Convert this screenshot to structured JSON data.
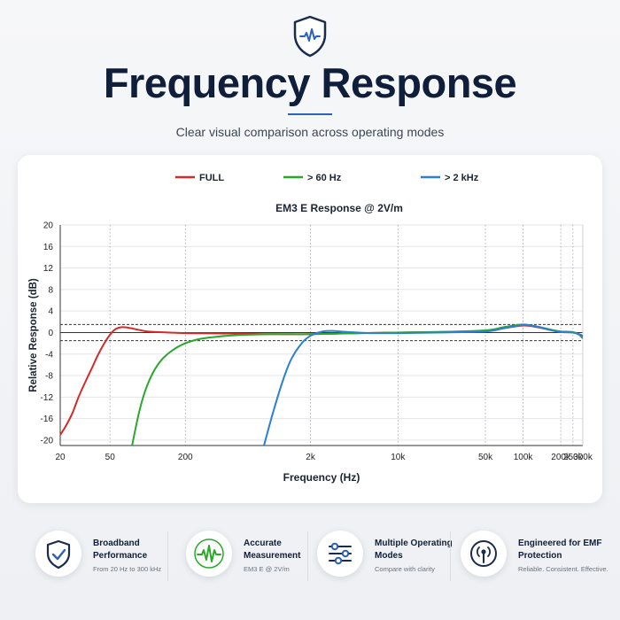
{
  "header": {
    "title": "Frequency Response",
    "subtitle": "Clear visual comparison across operating modes"
  },
  "chart_data": {
    "type": "line",
    "title": "EM3 E Response @ 2V/m",
    "xlabel": "Frequency (Hz)",
    "ylabel": "Relative Response (dB)",
    "xscale": "log",
    "xlim": [
      20,
      300000
    ],
    "ylim": [
      -21,
      20
    ],
    "xticks": [
      20,
      50,
      200,
      2000,
      10000,
      50000,
      100000,
      200000,
      250000,
      300000
    ],
    "xtick_labels": [
      "20",
      "50",
      "200",
      "2k",
      "10k",
      "50k",
      "100k",
      "200k",
      "250k",
      "300k"
    ],
    "yticks": [
      20,
      16,
      12,
      8,
      4,
      0,
      -4,
      -8,
      -12,
      -16,
      -20
    ],
    "ytick_labels": [
      "20",
      "16",
      "12",
      "8",
      "4",
      "0",
      "-4",
      "-8",
      "-12",
      "-16",
      "-20"
    ],
    "reference_lines": [
      1.5,
      -1.5
    ],
    "grid": true,
    "legend_position": "top",
    "series": [
      {
        "name": "FULL",
        "color": "#d42a2a",
        "points": [
          [
            20,
            -19
          ],
          [
            22,
            -17.5
          ],
          [
            25,
            -15
          ],
          [
            28,
            -12
          ],
          [
            32,
            -9
          ],
          [
            36,
            -6.5
          ],
          [
            40,
            -4.2
          ],
          [
            45,
            -2
          ],
          [
            50,
            -0.4
          ],
          [
            55,
            0.6
          ],
          [
            62,
            1
          ],
          [
            70,
            0.9
          ],
          [
            85,
            0.5
          ],
          [
            100,
            0.2
          ],
          [
            150,
            0
          ],
          [
            200,
            -0.1
          ],
          [
            500,
            -0.2
          ],
          [
            1000,
            -0.3
          ],
          [
            2000,
            -0.3
          ],
          [
            5000,
            -0.1
          ],
          [
            10000,
            0
          ],
          [
            20000,
            0.1
          ],
          [
            50000,
            0.3
          ],
          [
            70000,
            0.8
          ],
          [
            100000,
            1.3
          ],
          [
            130000,
            1
          ],
          [
            170000,
            0.4
          ],
          [
            200000,
            0.1
          ],
          [
            250000,
            0
          ],
          [
            280000,
            -0.3
          ],
          [
            300000,
            -0.6
          ]
        ]
      },
      {
        "name": "> 60 Hz",
        "color": "#2aa82a",
        "points": [
          [
            75,
            -21
          ],
          [
            85,
            -15
          ],
          [
            95,
            -11
          ],
          [
            110,
            -7.5
          ],
          [
            130,
            -5
          ],
          [
            160,
            -3.2
          ],
          [
            200,
            -2
          ],
          [
            260,
            -1.2
          ],
          [
            350,
            -0.8
          ],
          [
            500,
            -0.5
          ],
          [
            1000,
            -0.3
          ],
          [
            2000,
            -0.3
          ],
          [
            5000,
            -0.1
          ],
          [
            10000,
            0
          ],
          [
            20000,
            0.1
          ],
          [
            50000,
            0.4
          ],
          [
            70000,
            1
          ],
          [
            100000,
            1.5
          ],
          [
            130000,
            1.1
          ],
          [
            170000,
            0.5
          ],
          [
            200000,
            0.2
          ],
          [
            250000,
            0.1
          ],
          [
            280000,
            -0.4
          ],
          [
            300000,
            -1.1
          ]
        ]
      },
      {
        "name": "> 2 kHz",
        "color": "#2b7fd4",
        "points": [
          [
            850,
            -21
          ],
          [
            1000,
            -15
          ],
          [
            1200,
            -9
          ],
          [
            1400,
            -5
          ],
          [
            1700,
            -2
          ],
          [
            2000,
            -0.6
          ],
          [
            2500,
            0.2
          ],
          [
            3000,
            0.3
          ],
          [
            4000,
            0.1
          ],
          [
            6000,
            -0.1
          ],
          [
            10000,
            -0.1
          ],
          [
            20000,
            0
          ],
          [
            50000,
            0.2
          ],
          [
            70000,
            0.8
          ],
          [
            100000,
            1.4
          ],
          [
            130000,
            1.1
          ],
          [
            170000,
            0.4
          ],
          [
            200000,
            0.1
          ],
          [
            250000,
            0
          ],
          [
            280000,
            -0.3
          ],
          [
            300000,
            -0.8
          ]
        ]
      }
    ]
  },
  "features": [
    {
      "icon": "shield-check-icon",
      "title": "Broadband Performance",
      "desc": "From 20 Hz to 300 kHz"
    },
    {
      "icon": "waveform-icon",
      "title": "Accurate Measurement",
      "desc": "EM3 E @ 2V/m"
    },
    {
      "icon": "sliders-icon",
      "title": "Multiple Operating Modes",
      "desc": "Compare with clarity"
    },
    {
      "icon": "emf-antenna-icon",
      "title": "Engineered for EMF Protection",
      "desc": "Reliable. Consistent. Effective."
    }
  ],
  "colors": {
    "accent": "#2b62b8",
    "navy": "#0e1e3b",
    "green": "#2aa82a"
  }
}
